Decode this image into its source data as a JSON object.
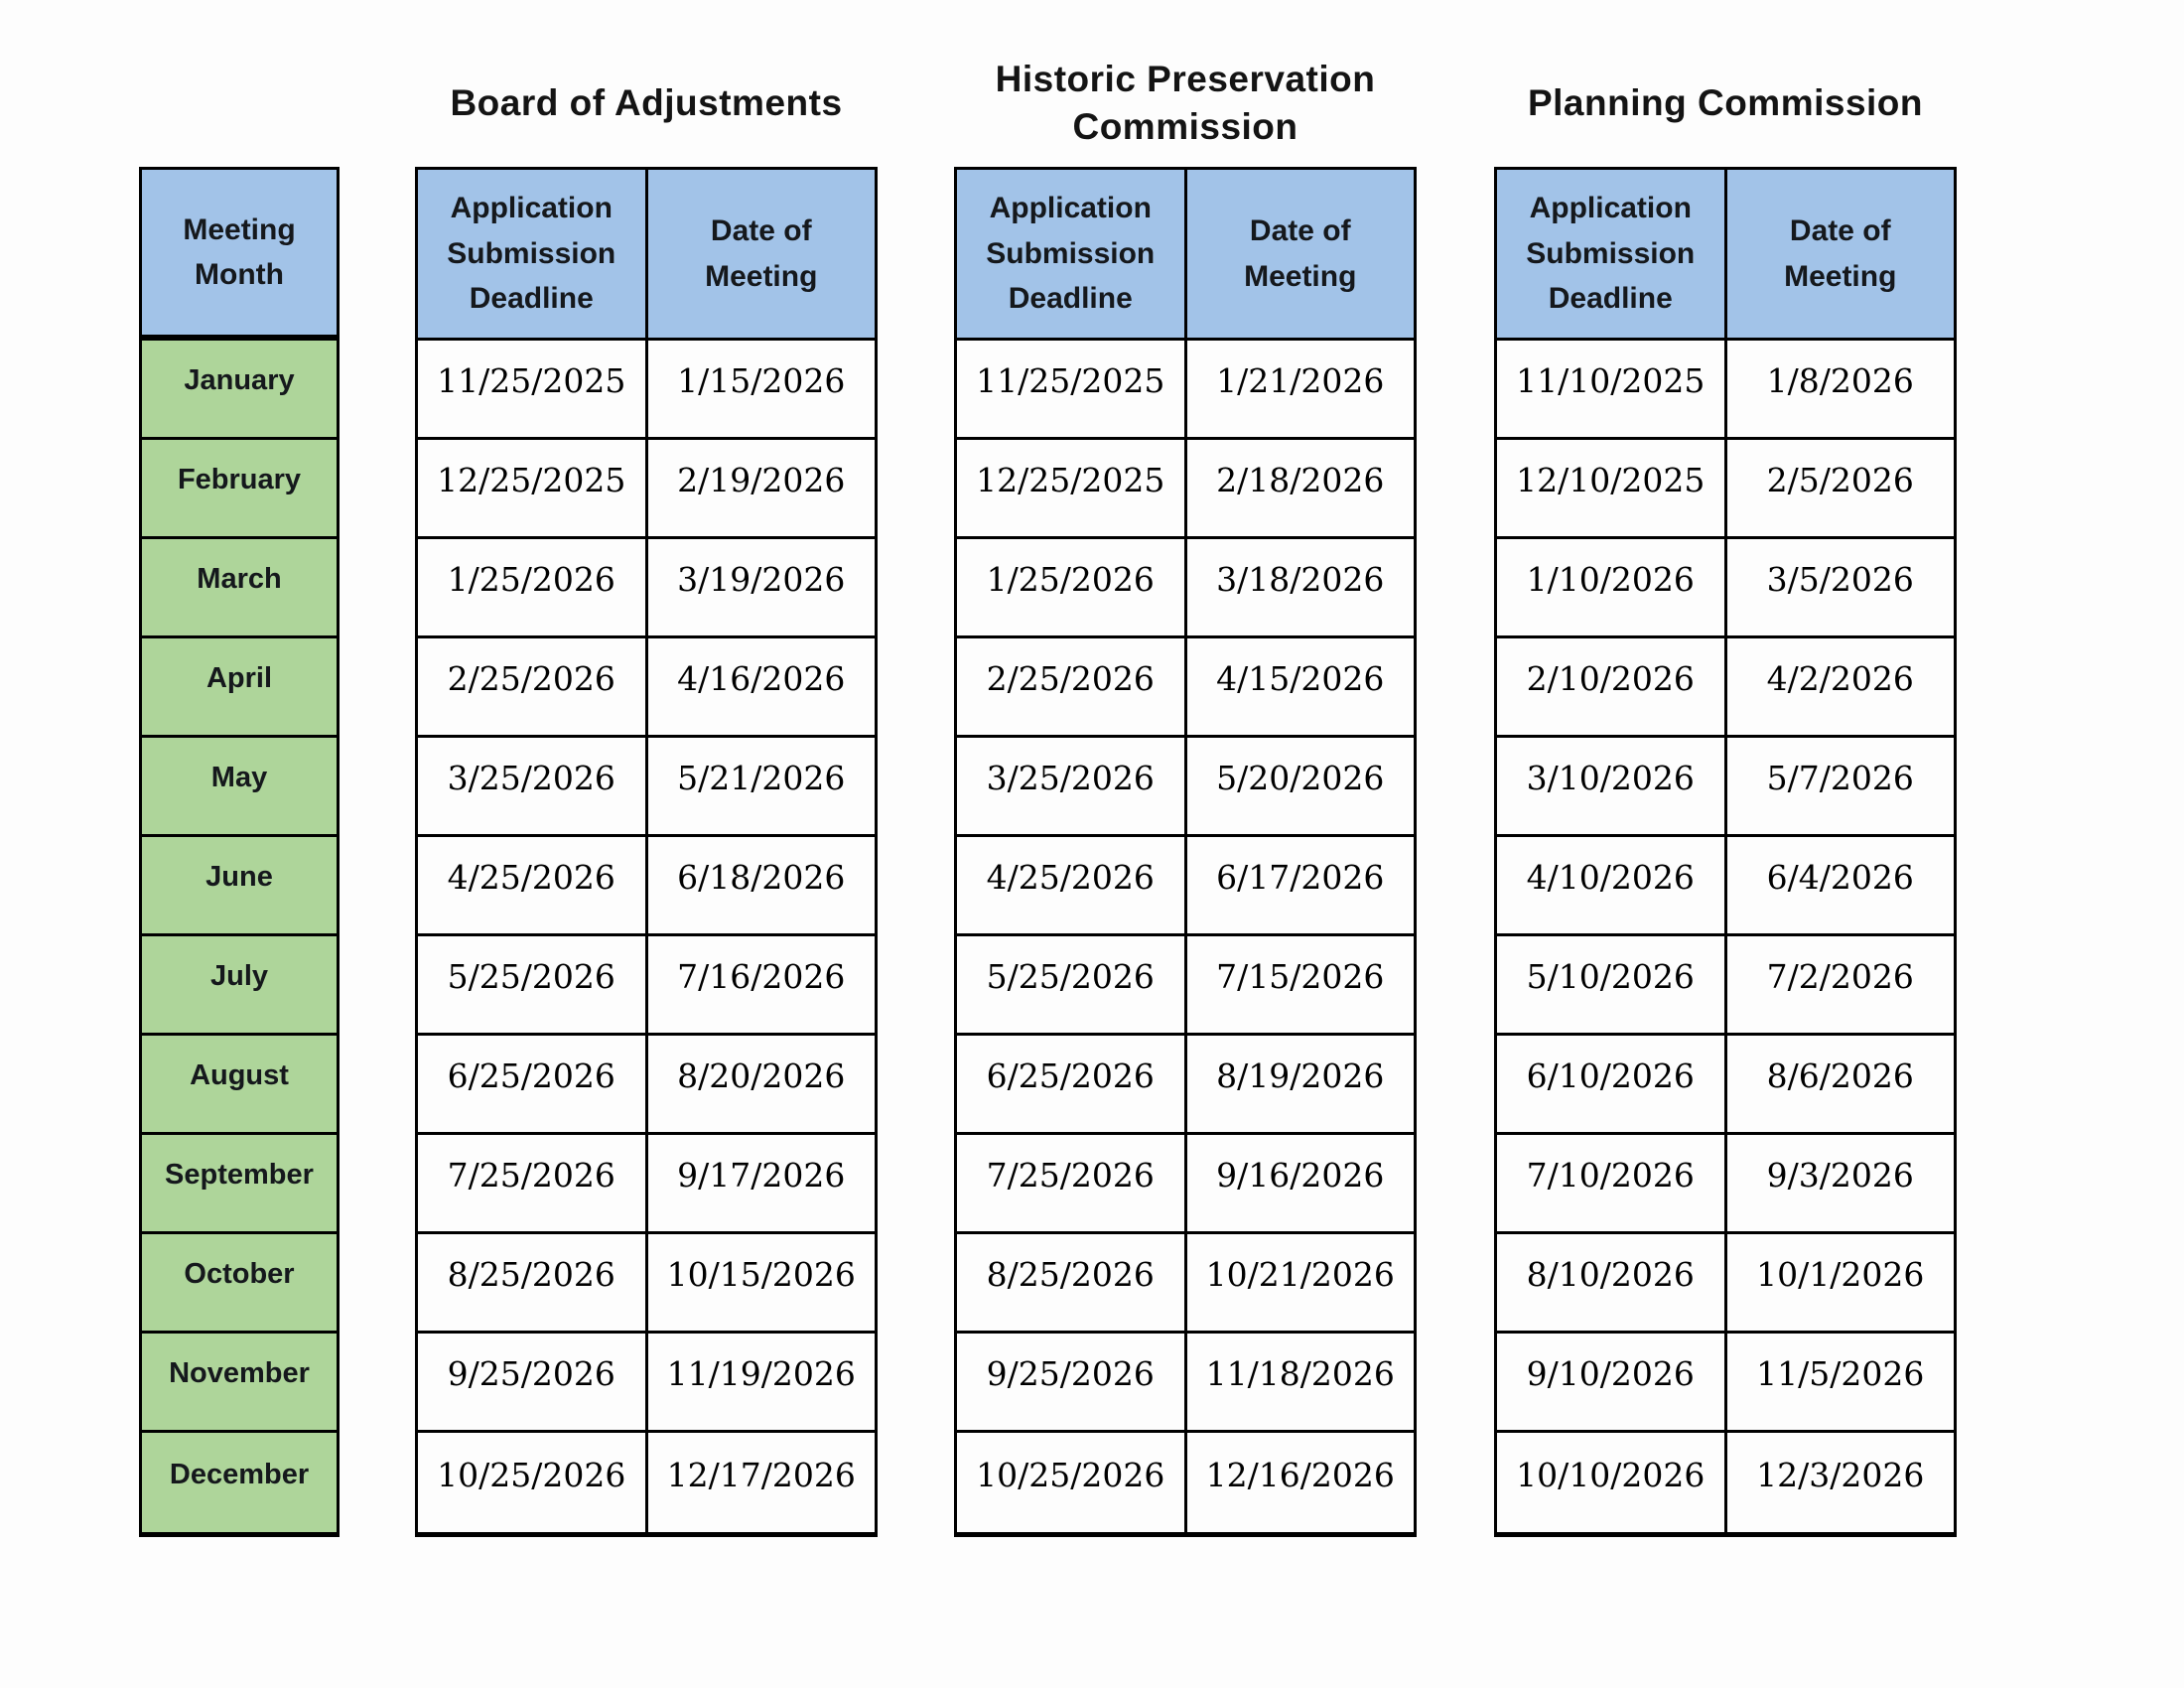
{
  "colors": {
    "header_blue": "#a2c3e8",
    "month_green": "#aed59a",
    "border_black": "#000000",
    "page_background": "#fdfdfd"
  },
  "month_column": {
    "header": "Meeting Month",
    "months": [
      "January",
      "February",
      "March",
      "April",
      "May",
      "June",
      "July",
      "August",
      "September",
      "October",
      "November",
      "December"
    ]
  },
  "tables": [
    {
      "title": "Board of Adjustments",
      "columns": [
        "Application Submission Deadline",
        "Date of Meeting"
      ],
      "rows": [
        {
          "deadline": "11/25/2025",
          "meeting": "1/15/2026"
        },
        {
          "deadline": "12/25/2025",
          "meeting": "2/19/2026"
        },
        {
          "deadline": "1/25/2026",
          "meeting": "3/19/2026"
        },
        {
          "deadline": "2/25/2026",
          "meeting": "4/16/2026"
        },
        {
          "deadline": "3/25/2026",
          "meeting": "5/21/2026"
        },
        {
          "deadline": "4/25/2026",
          "meeting": "6/18/2026"
        },
        {
          "deadline": "5/25/2026",
          "meeting": "7/16/2026"
        },
        {
          "deadline": "6/25/2026",
          "meeting": "8/20/2026"
        },
        {
          "deadline": "7/25/2026",
          "meeting": "9/17/2026"
        },
        {
          "deadline": "8/25/2026",
          "meeting": "10/15/2026"
        },
        {
          "deadline": "9/25/2026",
          "meeting": "11/19/2026"
        },
        {
          "deadline": "10/25/2026",
          "meeting": "12/17/2026"
        }
      ]
    },
    {
      "title": "Historic Preservation Commission",
      "columns": [
        "Application Submission Deadline",
        "Date of Meeting"
      ],
      "rows": [
        {
          "deadline": "11/25/2025",
          "meeting": "1/21/2026"
        },
        {
          "deadline": "12/25/2025",
          "meeting": "2/18/2026"
        },
        {
          "deadline": "1/25/2026",
          "meeting": "3/18/2026"
        },
        {
          "deadline": "2/25/2026",
          "meeting": "4/15/2026"
        },
        {
          "deadline": "3/25/2026",
          "meeting": "5/20/2026"
        },
        {
          "deadline": "4/25/2026",
          "meeting": "6/17/2026"
        },
        {
          "deadline": "5/25/2026",
          "meeting": "7/15/2026"
        },
        {
          "deadline": "6/25/2026",
          "meeting": "8/19/2026"
        },
        {
          "deadline": "7/25/2026",
          "meeting": "9/16/2026"
        },
        {
          "deadline": "8/25/2026",
          "meeting": "10/21/2026"
        },
        {
          "deadline": "9/25/2026",
          "meeting": "11/18/2026"
        },
        {
          "deadline": "10/25/2026",
          "meeting": "12/16/2026"
        }
      ]
    },
    {
      "title": "Planning Commission",
      "columns": [
        "Application Submission Deadline",
        "Date of Meeting"
      ],
      "rows": [
        {
          "deadline": "11/10/2025",
          "meeting": "1/8/2026"
        },
        {
          "deadline": "12/10/2025",
          "meeting": "2/5/2026"
        },
        {
          "deadline": "1/10/2026",
          "meeting": "3/5/2026"
        },
        {
          "deadline": "2/10/2026",
          "meeting": "4/2/2026"
        },
        {
          "deadline": "3/10/2026",
          "meeting": "5/7/2026"
        },
        {
          "deadline": "4/10/2026",
          "meeting": "6/4/2026"
        },
        {
          "deadline": "5/10/2026",
          "meeting": "7/2/2026"
        },
        {
          "deadline": "6/10/2026",
          "meeting": "8/6/2026"
        },
        {
          "deadline": "7/10/2026",
          "meeting": "9/3/2026"
        },
        {
          "deadline": "8/10/2026",
          "meeting": "10/1/2026"
        },
        {
          "deadline": "9/10/2026",
          "meeting": "11/5/2026"
        },
        {
          "deadline": "10/10/2026",
          "meeting": "12/3/2026"
        }
      ]
    }
  ]
}
